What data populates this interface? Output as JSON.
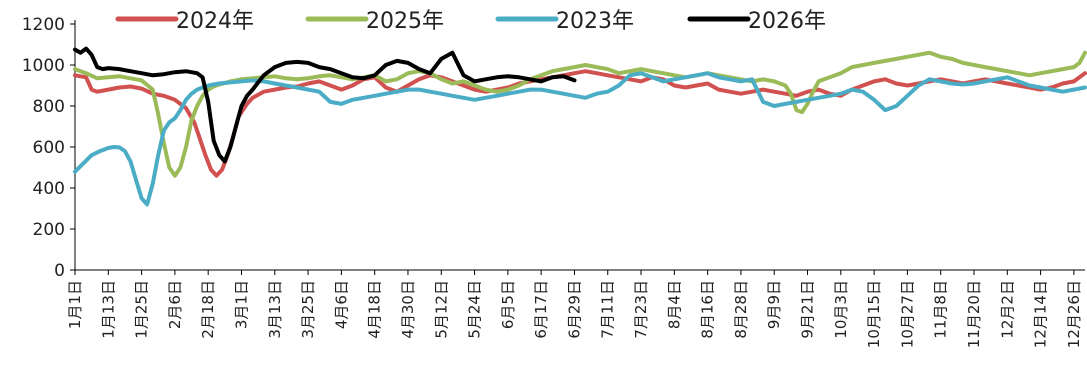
{
  "chart_data": {
    "type": "line",
    "ylim": [
      0,
      1200
    ],
    "yticks": [
      0,
      200,
      400,
      600,
      800,
      1000,
      1200
    ],
    "x_domain": [
      0,
      364
    ],
    "x_tick_positions": [
      0,
      12,
      24,
      36,
      48,
      60,
      72,
      84,
      96,
      108,
      120,
      132,
      144,
      156,
      168,
      180,
      192,
      204,
      216,
      228,
      240,
      252,
      264,
      276,
      288,
      300,
      312,
      324,
      336,
      348,
      360
    ],
    "x_tick_labels": [
      "1月1日",
      "1月13日",
      "1月25日",
      "2月6日",
      "2月18日",
      "3月1日",
      "3月13日",
      "3月25日",
      "4月6日",
      "4月18日",
      "4月30日",
      "5月12日",
      "5月24日",
      "6月5日",
      "6月17日",
      "6月29日",
      "7月11日",
      "7月23日",
      "8月4日",
      "8月16日",
      "8月28日",
      "9月9日",
      "9月21日",
      "10月3日",
      "10月15日",
      "10月27日",
      "11月8日",
      "11月20日",
      "12月2日",
      "12月14日",
      "12月26日"
    ],
    "legend_position": "top",
    "legend_order": [
      0,
      1,
      2,
      3
    ],
    "series": [
      {
        "name": "2024年",
        "color": "#d0514f",
        "x": [
          0,
          4,
          6,
          8,
          12,
          16,
          20,
          24,
          28,
          32,
          36,
          40,
          43,
          45,
          47,
          49,
          51,
          53,
          55,
          57,
          59,
          62,
          64,
          68,
          72,
          76,
          80,
          84,
          88,
          92,
          96,
          100,
          104,
          108,
          112,
          116,
          120,
          124,
          128,
          132,
          136,
          140,
          144,
          148,
          152,
          156,
          160,
          164,
          168,
          172,
          176,
          180,
          184,
          188,
          192,
          196,
          200,
          204,
          208,
          212,
          216,
          220,
          224,
          228,
          232,
          236,
          240,
          244,
          248,
          252,
          256,
          260,
          264,
          268,
          272,
          276,
          280,
          284,
          288,
          292,
          296,
          300,
          304,
          308,
          312,
          316,
          320,
          324,
          328,
          332,
          336,
          340,
          344,
          348,
          352,
          356,
          360,
          364
        ],
        "y": [
          950,
          940,
          880,
          870,
          880,
          890,
          895,
          885,
          860,
          850,
          830,
          790,
          720,
          640,
          560,
          490,
          460,
          490,
          560,
          650,
          750,
          810,
          840,
          870,
          880,
          890,
          895,
          910,
          920,
          900,
          880,
          900,
          930,
          940,
          890,
          870,
          900,
          930,
          950,
          940,
          920,
          900,
          880,
          870,
          880,
          890,
          910,
          920,
          930,
          940,
          950,
          960,
          970,
          960,
          950,
          940,
          930,
          920,
          940,
          930,
          900,
          890,
          900,
          910,
          880,
          870,
          860,
          870,
          880,
          870,
          860,
          850,
          870,
          880,
          860,
          850,
          880,
          900,
          920,
          930,
          910,
          900,
          910,
          920,
          930,
          920,
          910,
          920,
          930,
          920,
          910,
          900,
          890,
          880,
          890,
          910,
          920,
          960
        ]
      },
      {
        "name": "2025年",
        "color": "#9bbb59",
        "x": [
          0,
          4,
          8,
          12,
          16,
          20,
          24,
          28,
          30,
          32,
          34,
          36,
          38,
          40,
          42,
          44,
          46,
          48,
          50,
          52,
          56,
          60,
          64,
          68,
          72,
          76,
          80,
          84,
          88,
          92,
          96,
          100,
          104,
          108,
          112,
          116,
          120,
          124,
          128,
          132,
          136,
          140,
          144,
          148,
          152,
          156,
          160,
          164,
          168,
          172,
          176,
          180,
          184,
          188,
          192,
          196,
          200,
          204,
          208,
          212,
          216,
          220,
          224,
          228,
          232,
          236,
          240,
          244,
          248,
          252,
          256,
          258,
          260,
          262,
          264,
          266,
          268,
          270,
          272,
          276,
          280,
          284,
          288,
          292,
          296,
          300,
          304,
          308,
          312,
          316,
          320,
          324,
          328,
          332,
          336,
          340,
          344,
          348,
          352,
          356,
          360,
          362,
          364
        ],
        "y": [
          980,
          960,
          935,
          940,
          945,
          935,
          925,
          880,
          760,
          620,
          500,
          460,
          500,
          600,
          730,
          800,
          850,
          880,
          895,
          905,
          920,
          930,
          935,
          940,
          945,
          935,
          930,
          935,
          945,
          950,
          940,
          930,
          940,
          950,
          920,
          930,
          960,
          970,
          960,
          930,
          910,
          920,
          900,
          880,
          870,
          880,
          900,
          930,
          950,
          970,
          980,
          990,
          1000,
          990,
          980,
          960,
          970,
          980,
          970,
          960,
          950,
          940,
          950,
          960,
          950,
          940,
          930,
          920,
          930,
          920,
          900,
          860,
          780,
          770,
          810,
          870,
          920,
          930,
          940,
          960,
          990,
          1000,
          1010,
          1020,
          1030,
          1040,
          1050,
          1060,
          1040,
          1030,
          1010,
          1000,
          990,
          980,
          970,
          960,
          950,
          960,
          970,
          980,
          990,
          1010,
          1060
        ]
      },
      {
        "name": "2023年",
        "color": "#4bacc6",
        "x": [
          0,
          3,
          6,
          9,
          12,
          14,
          16,
          18,
          20,
          22,
          24,
          26,
          28,
          30,
          32,
          34,
          36,
          38,
          40,
          42,
          44,
          46,
          48,
          52,
          56,
          60,
          64,
          68,
          72,
          76,
          80,
          84,
          88,
          92,
          96,
          100,
          104,
          108,
          112,
          116,
          120,
          124,
          128,
          132,
          136,
          140,
          144,
          148,
          152,
          156,
          160,
          164,
          168,
          172,
          176,
          180,
          184,
          188,
          192,
          196,
          200,
          204,
          208,
          212,
          216,
          220,
          224,
          228,
          232,
          236,
          240,
          244,
          248,
          252,
          256,
          260,
          264,
          268,
          272,
          276,
          280,
          284,
          288,
          292,
          296,
          300,
          304,
          308,
          312,
          316,
          320,
          324,
          328,
          332,
          336,
          340,
          344,
          348,
          352,
          356,
          360,
          364
        ],
        "y": [
          480,
          520,
          560,
          580,
          595,
          600,
          598,
          580,
          530,
          440,
          350,
          320,
          420,
          560,
          680,
          720,
          740,
          780,
          830,
          860,
          880,
          890,
          900,
          910,
          915,
          920,
          925,
          920,
          910,
          900,
          890,
          880,
          870,
          820,
          810,
          830,
          840,
          850,
          860,
          870,
          880,
          880,
          870,
          860,
          850,
          840,
          830,
          840,
          850,
          860,
          870,
          880,
          880,
          870,
          860,
          850,
          840,
          860,
          870,
          900,
          950,
          960,
          940,
          920,
          930,
          940,
          950,
          960,
          940,
          930,
          920,
          930,
          820,
          800,
          810,
          820,
          830,
          840,
          850,
          860,
          880,
          870,
          830,
          780,
          800,
          850,
          900,
          930,
          920,
          910,
          905,
          910,
          920,
          930,
          940,
          920,
          900,
          890,
          880,
          870,
          880,
          890
        ]
      },
      {
        "name": "2026年",
        "color": "#000000",
        "x": [
          0,
          2,
          4,
          6,
          8,
          10,
          12,
          16,
          20,
          24,
          28,
          32,
          36,
          40,
          44,
          46,
          48,
          50,
          52,
          54,
          56,
          58,
          60,
          62,
          64,
          68,
          72,
          76,
          80,
          84,
          88,
          92,
          96,
          100,
          104,
          108,
          112,
          116,
          120,
          124,
          128,
          132,
          136,
          140,
          144,
          148,
          152,
          156,
          160,
          164,
          168,
          172,
          176,
          180
        ],
        "y": [
          1075,
          1060,
          1080,
          1050,
          990,
          980,
          985,
          980,
          970,
          960,
          950,
          955,
          965,
          970,
          960,
          940,
          820,
          630,
          560,
          530,
          600,
          700,
          800,
          850,
          880,
          950,
          990,
          1010,
          1015,
          1010,
          990,
          980,
          960,
          940,
          935,
          950,
          1000,
          1020,
          1010,
          980,
          960,
          1030,
          1060,
          950,
          920,
          930,
          940,
          945,
          940,
          930,
          920,
          940,
          945,
          925
        ]
      }
    ]
  }
}
